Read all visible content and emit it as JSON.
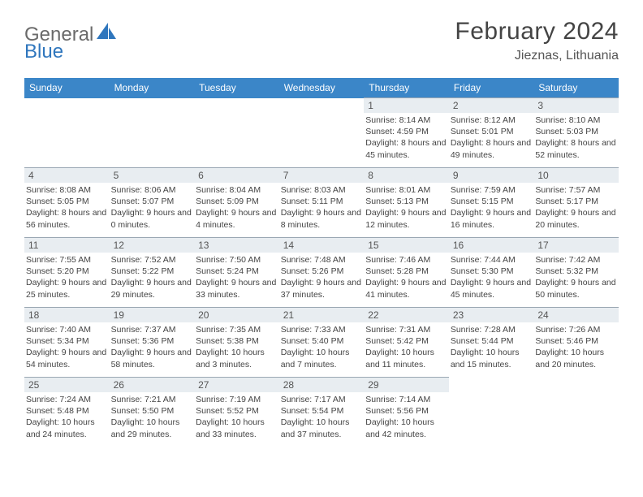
{
  "brand": {
    "word1": "General",
    "word2": "Blue"
  },
  "title": "February 2024",
  "location": "Jieznas, Lithuania",
  "colors": {
    "header_bg": "#3b86c8",
    "header_text": "#ffffff",
    "daynum_bg": "#e8edf1",
    "border": "#9aa7b3",
    "text": "#444444",
    "brand_blue": "#2f76bd",
    "brand_gray": "#6a6a6a"
  },
  "day_headers": [
    "Sunday",
    "Monday",
    "Tuesday",
    "Wednesday",
    "Thursday",
    "Friday",
    "Saturday"
  ],
  "weeks": [
    [
      null,
      null,
      null,
      null,
      {
        "n": "1",
        "sunrise": "8:14 AM",
        "sunset": "4:59 PM",
        "dl": "8 hours and 45 minutes."
      },
      {
        "n": "2",
        "sunrise": "8:12 AM",
        "sunset": "5:01 PM",
        "dl": "8 hours and 49 minutes."
      },
      {
        "n": "3",
        "sunrise": "8:10 AM",
        "sunset": "5:03 PM",
        "dl": "8 hours and 52 minutes."
      }
    ],
    [
      {
        "n": "4",
        "sunrise": "8:08 AM",
        "sunset": "5:05 PM",
        "dl": "8 hours and 56 minutes."
      },
      {
        "n": "5",
        "sunrise": "8:06 AM",
        "sunset": "5:07 PM",
        "dl": "9 hours and 0 minutes."
      },
      {
        "n": "6",
        "sunrise": "8:04 AM",
        "sunset": "5:09 PM",
        "dl": "9 hours and 4 minutes."
      },
      {
        "n": "7",
        "sunrise": "8:03 AM",
        "sunset": "5:11 PM",
        "dl": "9 hours and 8 minutes."
      },
      {
        "n": "8",
        "sunrise": "8:01 AM",
        "sunset": "5:13 PM",
        "dl": "9 hours and 12 minutes."
      },
      {
        "n": "9",
        "sunrise": "7:59 AM",
        "sunset": "5:15 PM",
        "dl": "9 hours and 16 minutes."
      },
      {
        "n": "10",
        "sunrise": "7:57 AM",
        "sunset": "5:17 PM",
        "dl": "9 hours and 20 minutes."
      }
    ],
    [
      {
        "n": "11",
        "sunrise": "7:55 AM",
        "sunset": "5:20 PM",
        "dl": "9 hours and 25 minutes."
      },
      {
        "n": "12",
        "sunrise": "7:52 AM",
        "sunset": "5:22 PM",
        "dl": "9 hours and 29 minutes."
      },
      {
        "n": "13",
        "sunrise": "7:50 AM",
        "sunset": "5:24 PM",
        "dl": "9 hours and 33 minutes."
      },
      {
        "n": "14",
        "sunrise": "7:48 AM",
        "sunset": "5:26 PM",
        "dl": "9 hours and 37 minutes."
      },
      {
        "n": "15",
        "sunrise": "7:46 AM",
        "sunset": "5:28 PM",
        "dl": "9 hours and 41 minutes."
      },
      {
        "n": "16",
        "sunrise": "7:44 AM",
        "sunset": "5:30 PM",
        "dl": "9 hours and 45 minutes."
      },
      {
        "n": "17",
        "sunrise": "7:42 AM",
        "sunset": "5:32 PM",
        "dl": "9 hours and 50 minutes."
      }
    ],
    [
      {
        "n": "18",
        "sunrise": "7:40 AM",
        "sunset": "5:34 PM",
        "dl": "9 hours and 54 minutes."
      },
      {
        "n": "19",
        "sunrise": "7:37 AM",
        "sunset": "5:36 PM",
        "dl": "9 hours and 58 minutes."
      },
      {
        "n": "20",
        "sunrise": "7:35 AM",
        "sunset": "5:38 PM",
        "dl": "10 hours and 3 minutes."
      },
      {
        "n": "21",
        "sunrise": "7:33 AM",
        "sunset": "5:40 PM",
        "dl": "10 hours and 7 minutes."
      },
      {
        "n": "22",
        "sunrise": "7:31 AM",
        "sunset": "5:42 PM",
        "dl": "10 hours and 11 minutes."
      },
      {
        "n": "23",
        "sunrise": "7:28 AM",
        "sunset": "5:44 PM",
        "dl": "10 hours and 15 minutes."
      },
      {
        "n": "24",
        "sunrise": "7:26 AM",
        "sunset": "5:46 PM",
        "dl": "10 hours and 20 minutes."
      }
    ],
    [
      {
        "n": "25",
        "sunrise": "7:24 AM",
        "sunset": "5:48 PM",
        "dl": "10 hours and 24 minutes."
      },
      {
        "n": "26",
        "sunrise": "7:21 AM",
        "sunset": "5:50 PM",
        "dl": "10 hours and 29 minutes."
      },
      {
        "n": "27",
        "sunrise": "7:19 AM",
        "sunset": "5:52 PM",
        "dl": "10 hours and 33 minutes."
      },
      {
        "n": "28",
        "sunrise": "7:17 AM",
        "sunset": "5:54 PM",
        "dl": "10 hours and 37 minutes."
      },
      {
        "n": "29",
        "sunrise": "7:14 AM",
        "sunset": "5:56 PM",
        "dl": "10 hours and 42 minutes."
      },
      null,
      null
    ]
  ],
  "labels": {
    "sunrise": "Sunrise:",
    "sunset": "Sunset:",
    "daylight": "Daylight:"
  }
}
